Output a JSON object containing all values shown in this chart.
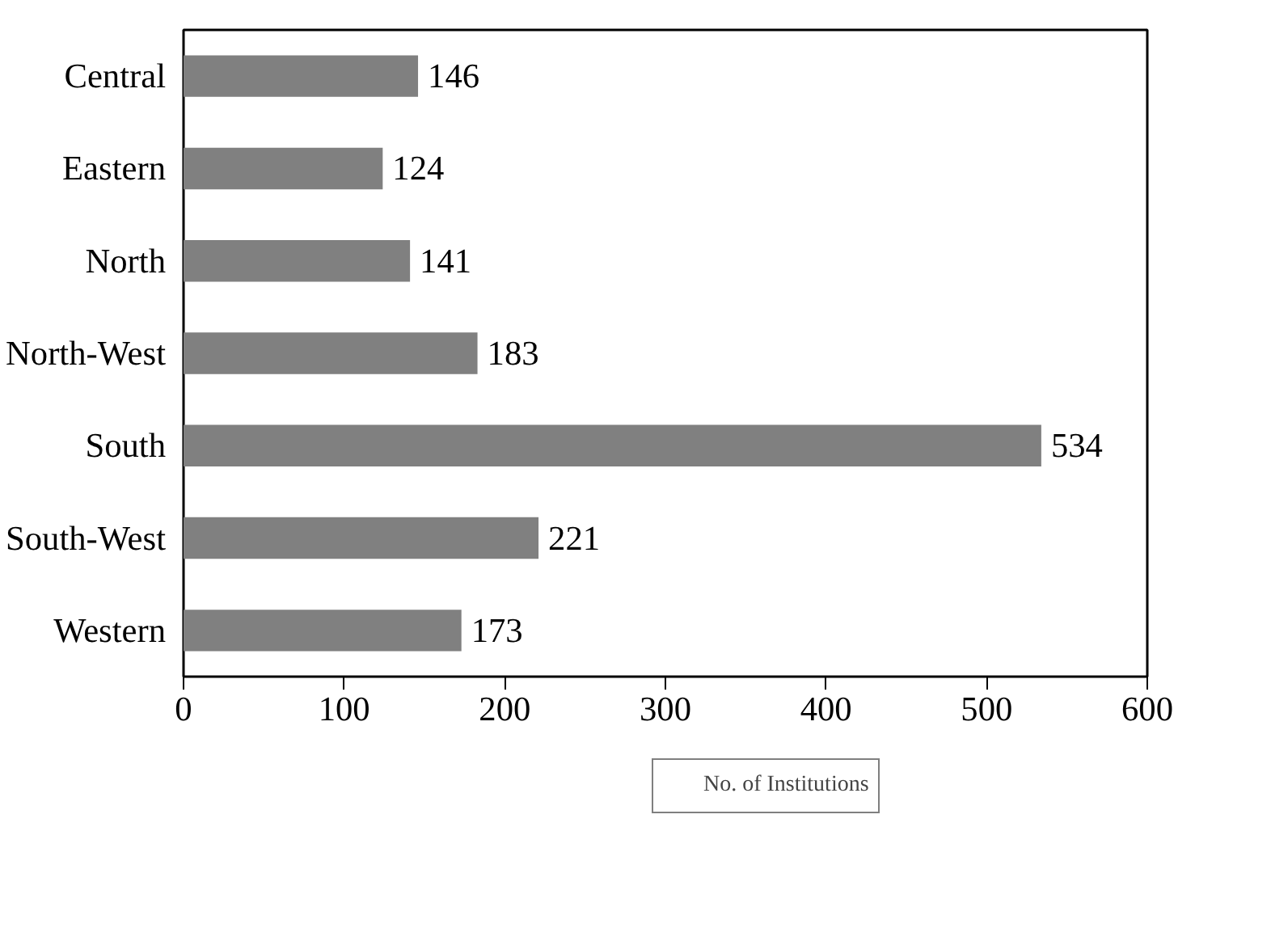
{
  "chart_data": {
    "type": "bar",
    "orientation": "horizontal",
    "categories": [
      "Central",
      "Eastern",
      "North",
      "North-West",
      "South",
      "South-West",
      "Western"
    ],
    "series": [
      {
        "name": "No. of Institutions",
        "color": "#808080",
        "values": [
          146,
          124,
          141,
          183,
          534,
          221,
          173
        ]
      }
    ],
    "xlim": [
      0,
      600
    ],
    "xticks": [
      0,
      100,
      200,
      300,
      400,
      500,
      600
    ],
    "data_labels": true,
    "grid": false,
    "legend": "bottom"
  }
}
